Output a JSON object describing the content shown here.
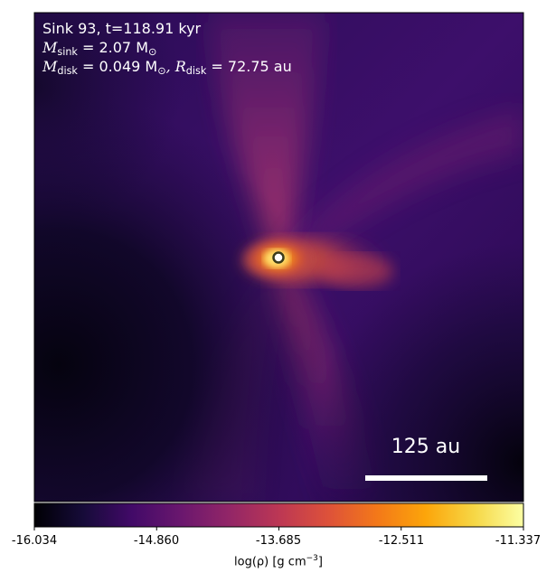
{
  "annotation": {
    "line1": "Sink 93, t=118.91 kyr",
    "msink_symbol": "M",
    "msink_sub": "sink",
    "msink_value": " = 2.07 M",
    "msink_unit_symbol": "⊙",
    "mdisk_symbol": "M",
    "mdisk_sub": "disk",
    "mdisk_value": " = 0.049 M",
    "mdisk_unit_symbol": "⊙",
    "rdisk_symbol": ", R",
    "rdisk_sub": "disk",
    "rdisk_value": " = 72.75 au"
  },
  "scalebar": {
    "label": "125 au"
  },
  "colorbar": {
    "ticks": [
      "-16.034",
      "-14.860",
      "-13.685",
      "-12.511",
      "-11.337"
    ],
    "label_prefix": "log(ρ) [g cm",
    "label_exp": "−3",
    "label_suffix": "]",
    "colormap": "inferno"
  },
  "colors": {
    "sink_marker_fill": "#ffffff",
    "sink_marker_edge": "#3a3a1a"
  }
}
